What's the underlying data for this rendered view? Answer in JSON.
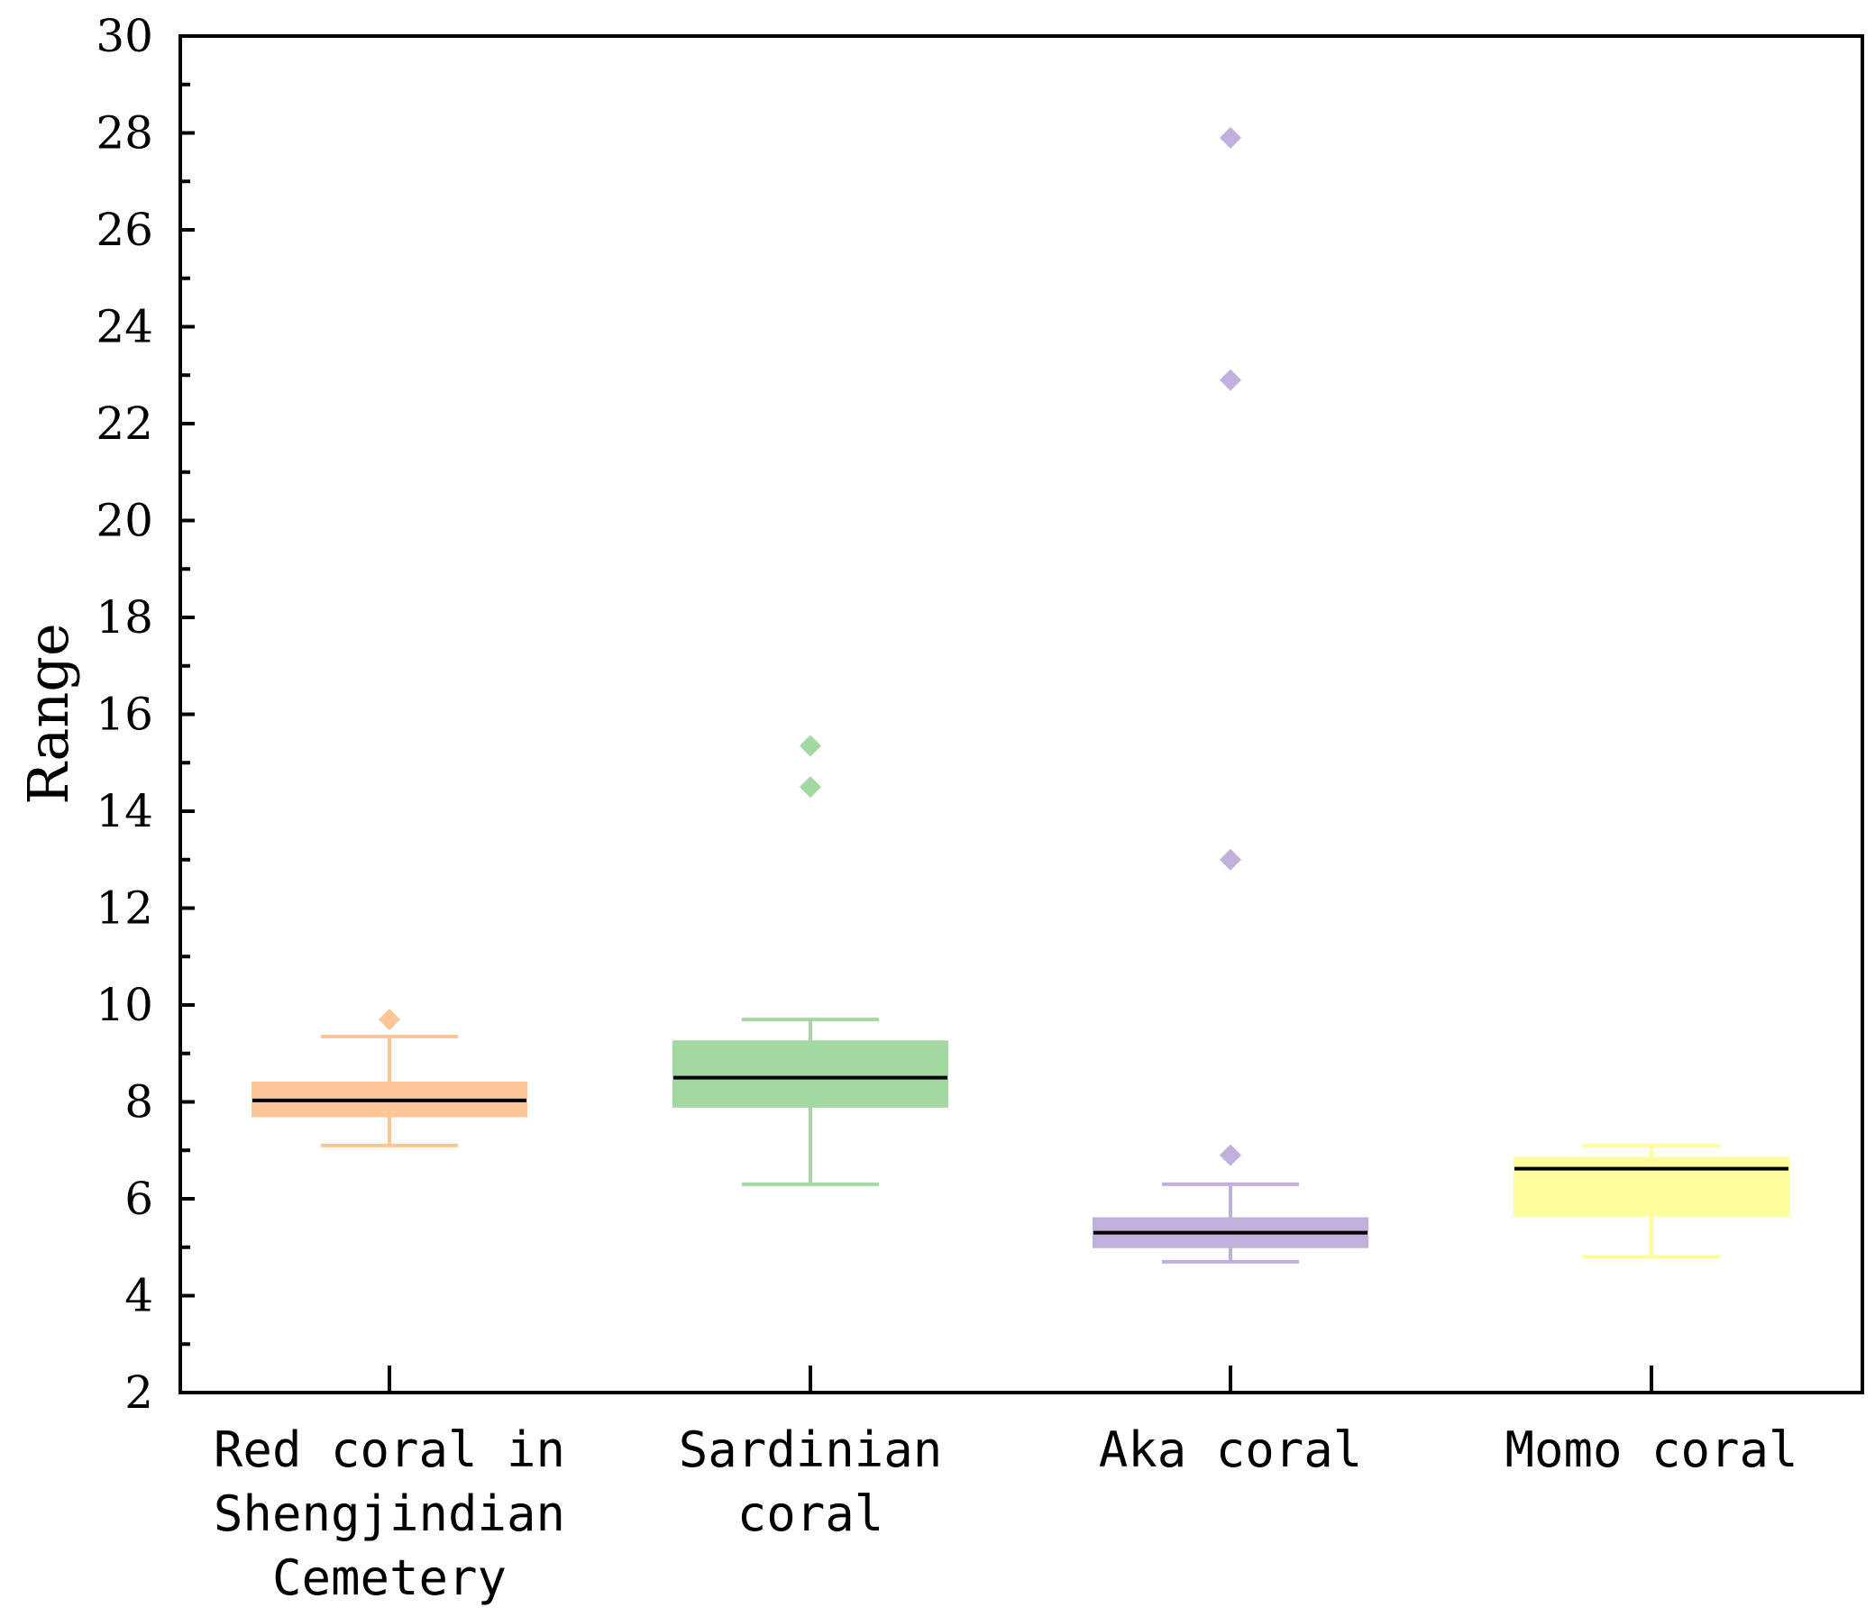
{
  "chart_data": {
    "type": "box",
    "title": "",
    "xlabel": "",
    "ylabel": "Range",
    "ylim": [
      2,
      30
    ],
    "yticks": [
      "2",
      "4",
      "6",
      "8",
      "10",
      "12",
      "14",
      "16",
      "18",
      "20",
      "22",
      "24",
      "26",
      "28",
      "30"
    ],
    "grid": false,
    "legend": "none",
    "categories": [
      [
        "Red coral in",
        "Shengjindian",
        "Cemetery"
      ],
      [
        "Sardinian",
        "coral"
      ],
      [
        "Aka coral"
      ],
      [
        "Momo coral"
      ]
    ],
    "series": [
      {
        "whisker_low": 7.1,
        "q1": 7.7,
        "median": 8.03,
        "q3": 8.4,
        "whisker_high": 9.35,
        "outliers": [
          9.7
        ],
        "color": "#FCC596"
      },
      {
        "whisker_low": 6.3,
        "q1": 7.9,
        "median": 8.5,
        "q3": 9.25,
        "whisker_high": 9.7,
        "outliers": [
          14.5,
          15.35
        ],
        "color": "#A3D8A1"
      },
      {
        "whisker_low": 4.7,
        "q1": 5.0,
        "median": 5.3,
        "q3": 5.6,
        "whisker_high": 6.3,
        "outliers": [
          6.9,
          13.0,
          22.9,
          27.9
        ],
        "color": "#C2B0DC"
      },
      {
        "whisker_low": 4.8,
        "q1": 5.65,
        "median": 6.62,
        "q3": 6.85,
        "whisker_high": 7.1,
        "outliers": [],
        "color": "#FFFC9B"
      }
    ]
  }
}
